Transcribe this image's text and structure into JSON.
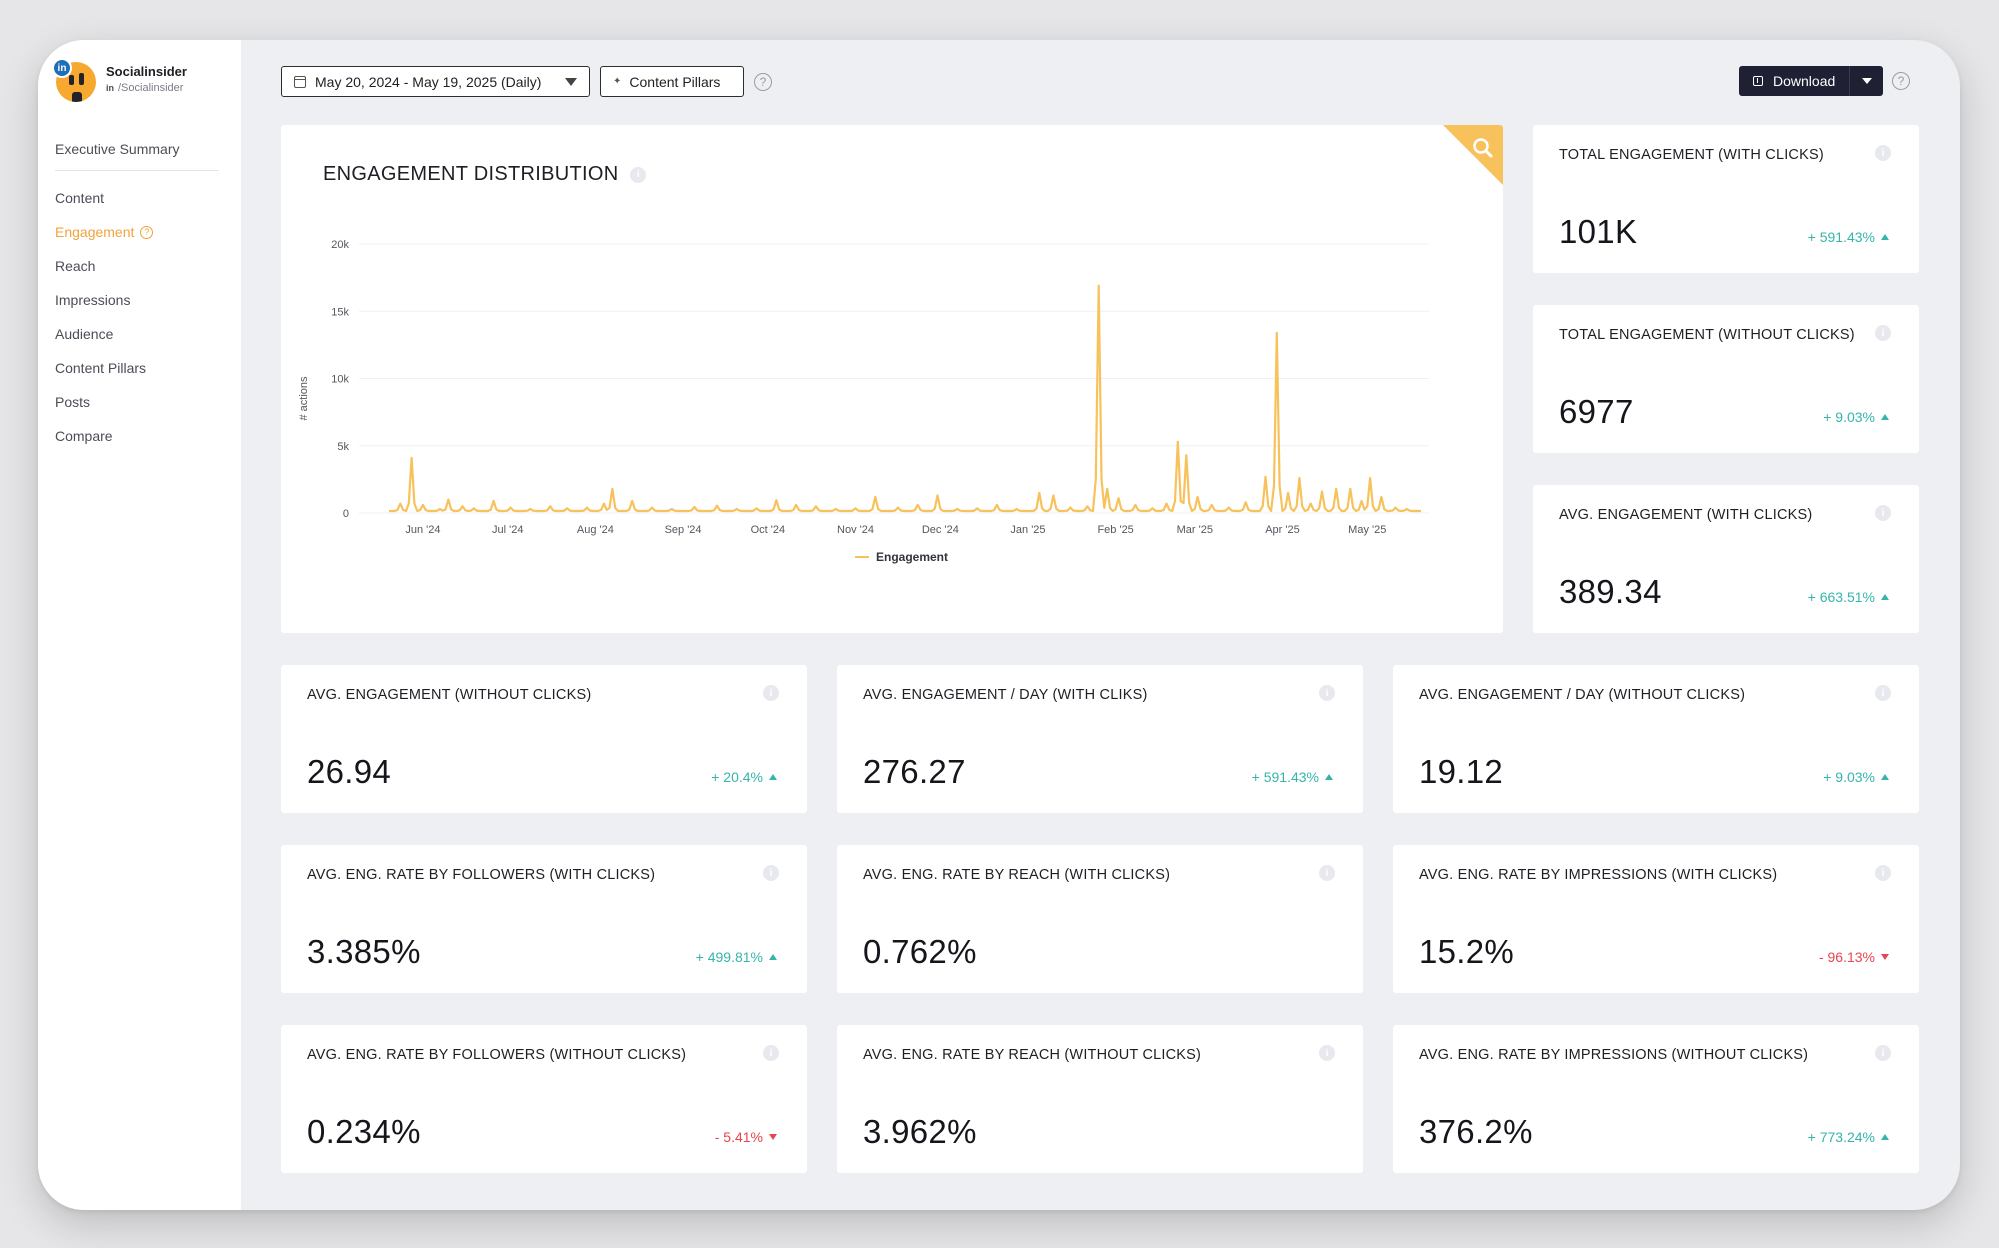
{
  "brand": {
    "name": "Socialinsider",
    "network_badge": "in",
    "handle_prefix": "in",
    "handle": "/Socialinsider"
  },
  "sidebar": {
    "top_item": "Executive Summary",
    "items": [
      {
        "label": "Content"
      },
      {
        "label": "Engagement",
        "active": true
      },
      {
        "label": "Reach"
      },
      {
        "label": "Impressions"
      },
      {
        "label": "Audience"
      },
      {
        "label": "Content Pillars"
      },
      {
        "label": "Posts"
      },
      {
        "label": "Compare"
      }
    ]
  },
  "toolbar": {
    "date_range": "May 20, 2024 - May 19, 2025 (Daily)",
    "pillars_label": "Content Pillars",
    "help": "?",
    "download_label": "Download"
  },
  "colors": {
    "accent": "#f2a33b",
    "line": "#f7c25c",
    "positive": "#35b5aa",
    "negative": "#e5464f",
    "dark_button": "#1f2033"
  },
  "chart_data": {
    "type": "line",
    "title": "ENGAGEMENT DISTRIBUTION",
    "ylabel": "# actions",
    "xlabel": "",
    "ylim": [
      0,
      20000
    ],
    "yticks": [
      {
        "value": 0,
        "label": "0"
      },
      {
        "value": 5000,
        "label": "5k"
      },
      {
        "value": 10000,
        "label": "10k"
      },
      {
        "value": 15000,
        "label": "15k"
      },
      {
        "value": 20000,
        "label": "20k"
      }
    ],
    "x_range": [
      0,
      365
    ],
    "xticks": [
      {
        "day": 12,
        "label": "Jun '24"
      },
      {
        "day": 42,
        "label": "Jul '24"
      },
      {
        "day": 73,
        "label": "Aug '24"
      },
      {
        "day": 104,
        "label": "Sep '24"
      },
      {
        "day": 134,
        "label": "Oct '24"
      },
      {
        "day": 165,
        "label": "Nov '24"
      },
      {
        "day": 195,
        "label": "Dec '24"
      },
      {
        "day": 226,
        "label": "Jan '25"
      },
      {
        "day": 257,
        "label": "Feb '25"
      },
      {
        "day": 285,
        "label": "Mar '25"
      },
      {
        "day": 316,
        "label": "Apr '25"
      },
      {
        "day": 346,
        "label": "May '25"
      }
    ],
    "baseline": 150,
    "series": [
      {
        "name": "Engagement",
        "spikes": [
          {
            "day": 4,
            "value": 700
          },
          {
            "day": 8,
            "value": 4100
          },
          {
            "day": 12,
            "value": 600
          },
          {
            "day": 18,
            "value": 300
          },
          {
            "day": 21,
            "value": 1000
          },
          {
            "day": 26,
            "value": 500
          },
          {
            "day": 30,
            "value": 350
          },
          {
            "day": 37,
            "value": 900
          },
          {
            "day": 43,
            "value": 400
          },
          {
            "day": 50,
            "value": 300
          },
          {
            "day": 57,
            "value": 500
          },
          {
            "day": 63,
            "value": 350
          },
          {
            "day": 70,
            "value": 400
          },
          {
            "day": 76,
            "value": 700
          },
          {
            "day": 79,
            "value": 1800
          },
          {
            "day": 86,
            "value": 900
          },
          {
            "day": 93,
            "value": 400
          },
          {
            "day": 100,
            "value": 300
          },
          {
            "day": 108,
            "value": 450
          },
          {
            "day": 116,
            "value": 550
          },
          {
            "day": 123,
            "value": 300
          },
          {
            "day": 130,
            "value": 350
          },
          {
            "day": 137,
            "value": 950
          },
          {
            "day": 144,
            "value": 600
          },
          {
            "day": 151,
            "value": 500
          },
          {
            "day": 158,
            "value": 300
          },
          {
            "day": 165,
            "value": 350
          },
          {
            "day": 172,
            "value": 1200
          },
          {
            "day": 180,
            "value": 400
          },
          {
            "day": 187,
            "value": 600
          },
          {
            "day": 194,
            "value": 1300
          },
          {
            "day": 201,
            "value": 300
          },
          {
            "day": 208,
            "value": 350
          },
          {
            "day": 215,
            "value": 600
          },
          {
            "day": 222,
            "value": 300
          },
          {
            "day": 230,
            "value": 1500
          },
          {
            "day": 235,
            "value": 1300
          },
          {
            "day": 241,
            "value": 400
          },
          {
            "day": 247,
            "value": 500
          },
          {
            "day": 251,
            "value": 16900
          },
          {
            "day": 254,
            "value": 1800
          },
          {
            "day": 258,
            "value": 1100
          },
          {
            "day": 264,
            "value": 600
          },
          {
            "day": 270,
            "value": 350
          },
          {
            "day": 275,
            "value": 700
          },
          {
            "day": 279,
            "value": 5300
          },
          {
            "day": 282,
            "value": 4300
          },
          {
            "day": 286,
            "value": 1200
          },
          {
            "day": 291,
            "value": 600
          },
          {
            "day": 297,
            "value": 400
          },
          {
            "day": 303,
            "value": 800
          },
          {
            "day": 310,
            "value": 2700
          },
          {
            "day": 314,
            "value": 13400
          },
          {
            "day": 318,
            "value": 1500
          },
          {
            "day": 322,
            "value": 2600
          },
          {
            "day": 326,
            "value": 700
          },
          {
            "day": 330,
            "value": 1600
          },
          {
            "day": 335,
            "value": 1800
          },
          {
            "day": 340,
            "value": 1800
          },
          {
            "day": 344,
            "value": 900
          },
          {
            "day": 347,
            "value": 2600
          },
          {
            "day": 351,
            "value": 1200
          },
          {
            "day": 356,
            "value": 400
          },
          {
            "day": 360,
            "value": 300
          }
        ]
      }
    ],
    "legend": "Engagement",
    "legend_position": "bottom-center",
    "grid": true
  },
  "kpis": [
    {
      "title": "TOTAL ENGAGEMENT (WITH CLICKS)",
      "value": "101K",
      "change": "+ 591.43%",
      "trend": "up"
    },
    {
      "title": "TOTAL ENGAGEMENT (WITHOUT CLICKS)",
      "value": "6977",
      "change": "+ 9.03%",
      "trend": "up"
    },
    {
      "title": "AVG. ENGAGEMENT (WITH CLICKS)",
      "value": "389.34",
      "change": "+ 663.51%",
      "trend": "up"
    },
    {
      "title": "AVG. ENGAGEMENT (WITHOUT CLICKS)",
      "value": "26.94",
      "change": "+ 20.4%",
      "trend": "up"
    },
    {
      "title": "AVG. ENGAGEMENT / DAY (WITH CLIKS)",
      "value": "276.27",
      "change": "+ 591.43%",
      "trend": "up"
    },
    {
      "title": "AVG. ENGAGEMENT / DAY (WITHOUT CLICKS)",
      "value": "19.12",
      "change": "+ 9.03%",
      "trend": "up"
    },
    {
      "title": "AVG. ENG. RATE BY FOLLOWERS (WITH CLICKS)",
      "value": "3.385%",
      "change": "+ 499.81%",
      "trend": "up"
    },
    {
      "title": "AVG. ENG. RATE BY REACH (WITH CLICKS)",
      "value": "0.762%",
      "change": "",
      "trend": ""
    },
    {
      "title": "AVG. ENG. RATE BY IMPRESSIONS (WITH CLICKS)",
      "value": "15.2%",
      "change": "- 96.13%",
      "trend": "down"
    },
    {
      "title": "AVG. ENG. RATE BY FOLLOWERS (WITHOUT CLICKS)",
      "value": "0.234%",
      "change": "- 5.41%",
      "trend": "down"
    },
    {
      "title": "AVG. ENG. RATE BY REACH (WITHOUT CLICKS)",
      "value": "3.962%",
      "change": "",
      "trend": ""
    },
    {
      "title": "AVG. ENG. RATE BY IMPRESSIONS (WITHOUT CLICKS)",
      "value": "376.2%",
      "change": "+ 773.24%",
      "trend": "up"
    }
  ]
}
